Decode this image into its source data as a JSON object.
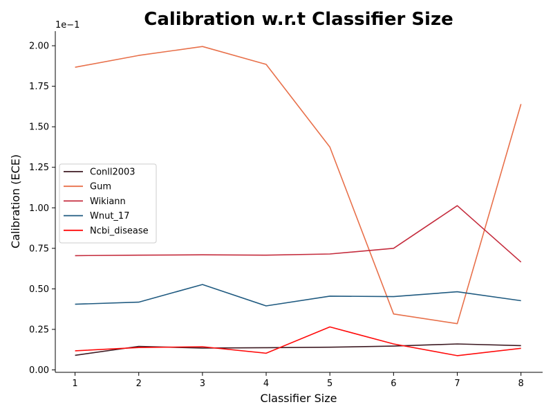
{
  "chart_data": {
    "type": "line",
    "title": "Calibration w.r.t Classifier Size",
    "xlabel": "Classifier Size",
    "ylabel": "Calibration (ECE)",
    "y_offset_text": "1e−1",
    "x": [
      1,
      2,
      3,
      4,
      5,
      6,
      7,
      8
    ],
    "x_ticks": [
      "1",
      "2",
      "3",
      "4",
      "5",
      "6",
      "7",
      "8"
    ],
    "y_ticks": [
      "0.00",
      "0.25",
      "0.50",
      "0.75",
      "1.00",
      "1.25",
      "1.50",
      "1.75",
      "2.00"
    ],
    "xlim": [
      0.69,
      8.34
    ],
    "ylim": [
      -0.015,
      2.09
    ],
    "y_scale_note": "values shown in units of 1e-1",
    "grid": false,
    "legend_position": "center-left",
    "series": [
      {
        "name": "Conll2003",
        "color": "#3d1a22",
        "values": [
          0.09,
          0.145,
          0.135,
          0.137,
          0.14,
          0.147,
          0.16,
          0.15
        ]
      },
      {
        "name": "Gum",
        "color": "#e8704a",
        "values": [
          1.867,
          1.94,
          1.995,
          1.885,
          1.375,
          0.345,
          0.285,
          1.64
        ]
      },
      {
        "name": "Wikiann",
        "color": "#c42b3c",
        "values": [
          0.705,
          0.708,
          0.71,
          0.708,
          0.715,
          0.75,
          1.013,
          0.665
        ]
      },
      {
        "name": "Wnut_17",
        "color": "#1f5a80",
        "values": [
          0.405,
          0.418,
          0.527,
          0.395,
          0.455,
          0.452,
          0.482,
          0.427
        ]
      },
      {
        "name": "Ncbi_disease",
        "color": "#ff0a0a",
        "values": [
          0.118,
          0.138,
          0.143,
          0.103,
          0.265,
          0.16,
          0.088,
          0.133
        ]
      }
    ]
  }
}
